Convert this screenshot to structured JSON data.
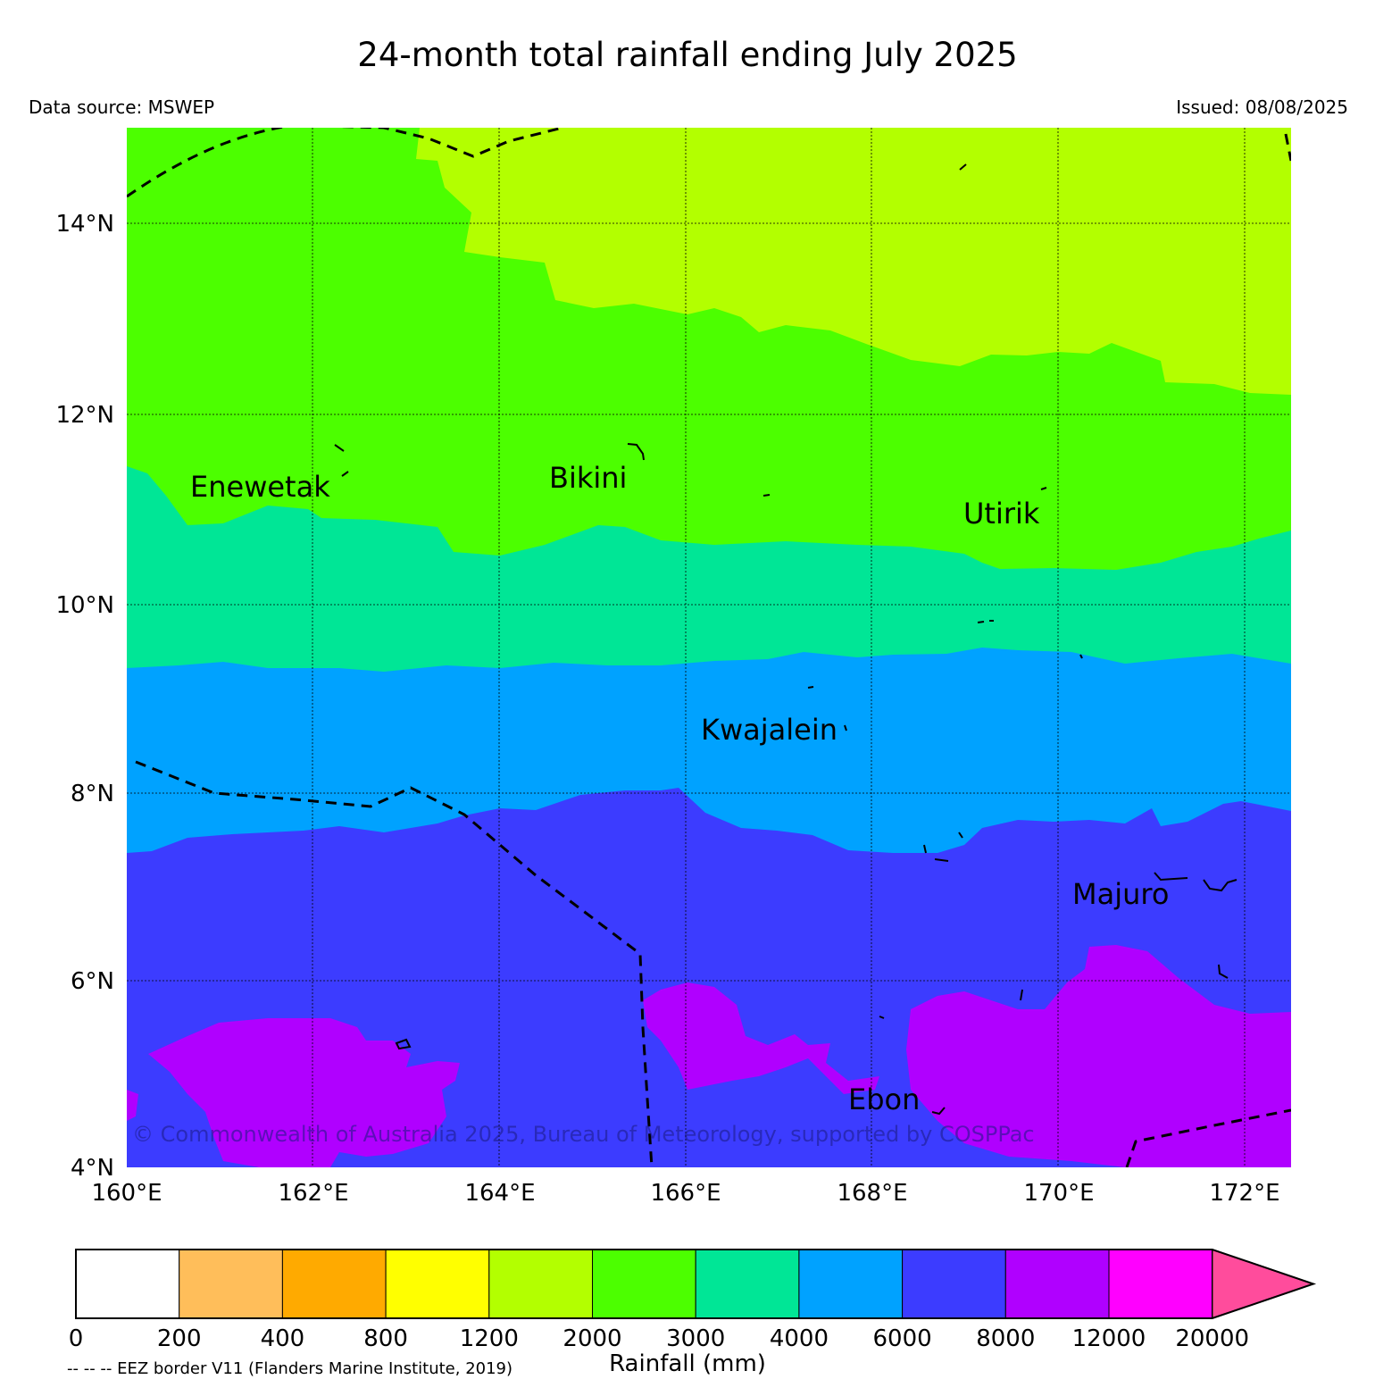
{
  "title": "24-month total rainfall ending July 2025",
  "data_source": "Data source: MSWEP",
  "issued": "Issued: 08/08/2025",
  "copyright": "© Commonwealth of Australia 2025, Bureau of Meteorology, supported by COSPPac",
  "map": {
    "lon_range": [
      160,
      172.5
    ],
    "lat_range": [
      4,
      15
    ],
    "lon_ticks": [
      "160°E",
      "162°E",
      "164°E",
      "166°E",
      "168°E",
      "170°E",
      "172°E"
    ],
    "lat_ticks": [
      "4°N",
      "6°N",
      "8°N",
      "10°N",
      "12°N",
      "14°N"
    ],
    "place_labels": [
      "Enewetak",
      "Bikini",
      "Utirik",
      "Kwajalein",
      "Majuro",
      "Ebon"
    ],
    "rainfall_colors": {
      "1200-2000": "#b3ff00",
      "2000-3000": "#4cff00",
      "3000-4000": "#00e696",
      "4000-6000": "#00a2ff",
      "6000-8000": "#3c3cff",
      "8000-12000": "#b000ff"
    }
  },
  "colorbar": {
    "title": "Rainfall (mm)",
    "tick_labels": [
      "0",
      "200",
      "400",
      "800",
      "1200",
      "2000",
      "3000",
      "4000",
      "6000",
      "8000",
      "12000",
      "20000"
    ],
    "colors": [
      "#ffffff",
      "#ffbe5a",
      "#ffaa00",
      "#ffff00",
      "#b3ff00",
      "#4cff00",
      "#00e696",
      "#00a2ff",
      "#3c3cff",
      "#b000ff",
      "#ff00ff"
    ],
    "extend_color": "#ff4c9c"
  },
  "legend_note": "-- -- -- EEZ border V11 (Flanders Marine Institute, 2019)"
}
